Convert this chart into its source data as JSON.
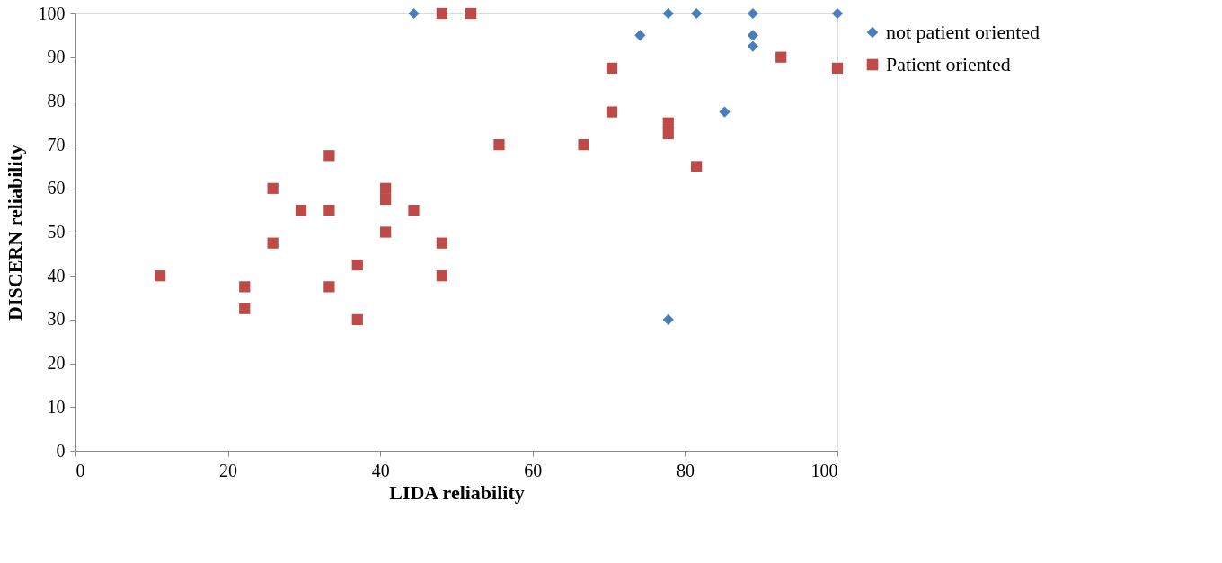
{
  "chart_data": {
    "type": "scatter",
    "xlabel": "LIDA reliability",
    "ylabel": "DISCERN reliability",
    "xlim": [
      0,
      100
    ],
    "ylim": [
      0,
      100
    ],
    "xticks": [
      0,
      20,
      40,
      60,
      80,
      100
    ],
    "yticks": [
      0,
      10,
      20,
      30,
      40,
      50,
      60,
      70,
      80,
      90,
      100
    ],
    "grid": false,
    "legend": "right",
    "series": [
      {
        "name": "not patient oriented",
        "color": "#4a7ebb",
        "marker": "diamond",
        "x": [
          44.4,
          77.8,
          81.5,
          88.9,
          100,
          74.1,
          88.9,
          88.9,
          85.2,
          77.8
        ],
        "values": [
          100,
          100,
          100,
          100,
          100,
          95,
          95,
          92.5,
          77.5,
          30
        ]
      },
      {
        "name": "Patient oriented",
        "color": "#be4b48",
        "marker": "square",
        "x": [
          11.1,
          22.2,
          22.2,
          25.9,
          25.9,
          29.6,
          33.3,
          33.3,
          33.3,
          37.0,
          37.0,
          40.7,
          40.7,
          40.7,
          44.4,
          48.1,
          48.1,
          48.1,
          51.9,
          55.6,
          66.7,
          70.4,
          70.4,
          77.8,
          77.8,
          81.5,
          92.6,
          100
        ],
        "values": [
          40,
          37.5,
          32.5,
          60,
          47.5,
          55,
          67.5,
          55,
          37.5,
          42.5,
          30,
          60,
          57.5,
          50,
          55,
          47.5,
          40,
          100,
          100,
          70,
          70,
          87.5,
          77.5,
          75,
          72.5,
          65,
          90,
          87.5
        ]
      }
    ]
  }
}
